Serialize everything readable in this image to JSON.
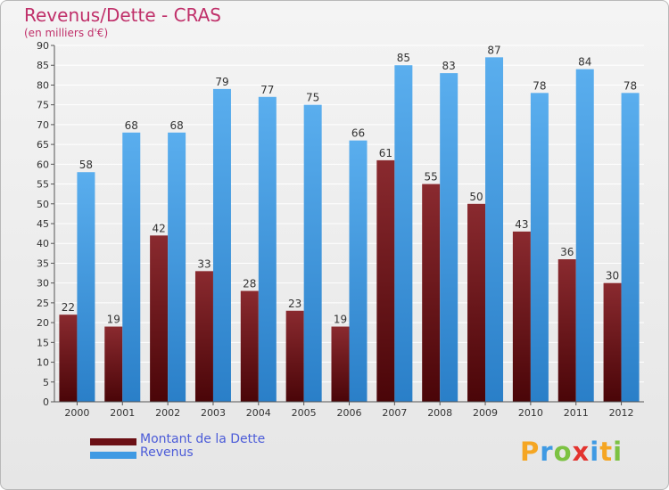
{
  "title": "Revenus/Dette - CRAS",
  "subtitle": "(en milliers d'€)",
  "legend": [
    {
      "label": "Montant de la Dette",
      "color": "#6b0f14"
    },
    {
      "label": "Revenus",
      "color": "#3f9ae3"
    }
  ],
  "logo": {
    "text": "Proxiti",
    "letters": [
      {
        "ch": "P",
        "color": "#f5a623"
      },
      {
        "ch": "r",
        "color": "#3f9ae3"
      },
      {
        "ch": "o",
        "color": "#7cc242"
      },
      {
        "ch": "x",
        "color": "#e3342f"
      },
      {
        "ch": "i",
        "color": "#3f9ae3"
      },
      {
        "ch": "t",
        "color": "#f5a623"
      },
      {
        "ch": "i",
        "color": "#7cc242"
      }
    ]
  },
  "chart_data": {
    "type": "bar",
    "categories": [
      "2000",
      "2001",
      "2002",
      "2003",
      "2004",
      "2005",
      "2006",
      "2007",
      "2008",
      "2009",
      "2010",
      "2011",
      "2012"
    ],
    "series": [
      {
        "name": "Montant de la Dette",
        "color": "#6b0f14",
        "values": [
          22,
          19,
          42,
          33,
          28,
          23,
          19,
          61,
          55,
          50,
          43,
          36,
          30
        ]
      },
      {
        "name": "Revenus",
        "color": "#3f9ae3",
        "values": [
          58,
          68,
          68,
          79,
          77,
          75,
          66,
          85,
          83,
          87,
          78,
          84,
          78
        ]
      }
    ],
    "ylim": [
      0,
      90
    ],
    "yticks": [
      0,
      5,
      10,
      15,
      20,
      25,
      30,
      35,
      40,
      45,
      50,
      55,
      60,
      65,
      70,
      75,
      80,
      85,
      90
    ],
    "grid": true,
    "legend_position": "bottom-left"
  }
}
